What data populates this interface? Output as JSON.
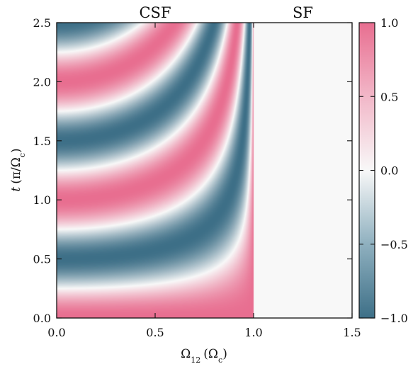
{
  "chart_data": {
    "type": "heatmap",
    "xlabel": "Ω12 (Ωc)",
    "xlabel_parts": {
      "main": "Ω",
      "sub": "12",
      "paren_main": "Ω",
      "paren_sub": "c"
    },
    "ylabel": "t (π/Ωc)",
    "ylabel_parts": {
      "var": "t",
      "paren_left": "(π/Ω",
      "paren_sub": "c",
      "paren_right": ")"
    },
    "xlim": [
      0,
      1.5
    ],
    "ylim": [
      0,
      2.5
    ],
    "xticks": [
      "0.0",
      "0.5",
      "1.0",
      "1.5"
    ],
    "yticks": [
      "0.0",
      "0.5",
      "1.0",
      "1.5",
      "2.0",
      "2.5"
    ],
    "region_labels": [
      {
        "text": "CSF",
        "x": 0.5
      },
      {
        "text": "SF",
        "x": 1.25
      }
    ],
    "boundary_x": 1.0,
    "colorbar": {
      "min": -1.0,
      "max": 1.0,
      "ticks": [
        "−1.0",
        "−0.5",
        "0.0",
        "0.5",
        "1.0"
      ],
      "tick_values": [
        -1.0,
        -0.5,
        0.0,
        0.5,
        1.0
      ],
      "colors": {
        "negative": "#3d6f87",
        "zero": "#f8f8f8",
        "positive": "#e86e90"
      }
    },
    "field": "cos(2π·t·√(1−Ω12²)) for Ω12 < 1; 0 for Ω12 ≥ 1",
    "grid": false
  }
}
